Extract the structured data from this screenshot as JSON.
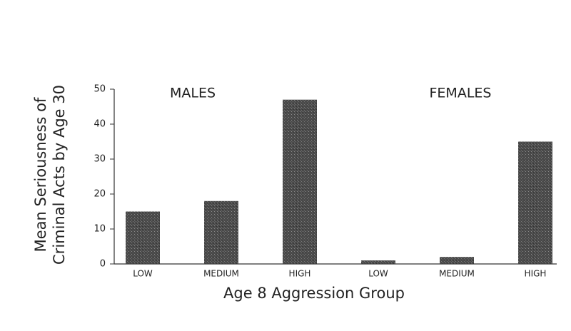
{
  "chart_data": {
    "type": "bar",
    "categories": [
      "LOW",
      "MEDIUM",
      "HIGH",
      "LOW",
      "MEDIUM",
      "HIGH"
    ],
    "values": [
      15,
      18,
      47,
      1,
      2,
      35
    ],
    "color": "#555555",
    "ylim": [
      0,
      50
    ],
    "yticks": [
      0,
      10,
      20,
      30,
      40,
      50
    ],
    "x_label": "Age 8 Aggression Group",
    "y_label": [
      "Mean Seriousness of",
      "Criminal Acts by Age 30"
    ],
    "annotations": [
      "MALES",
      "FEMALES"
    ],
    "grid": false
  }
}
